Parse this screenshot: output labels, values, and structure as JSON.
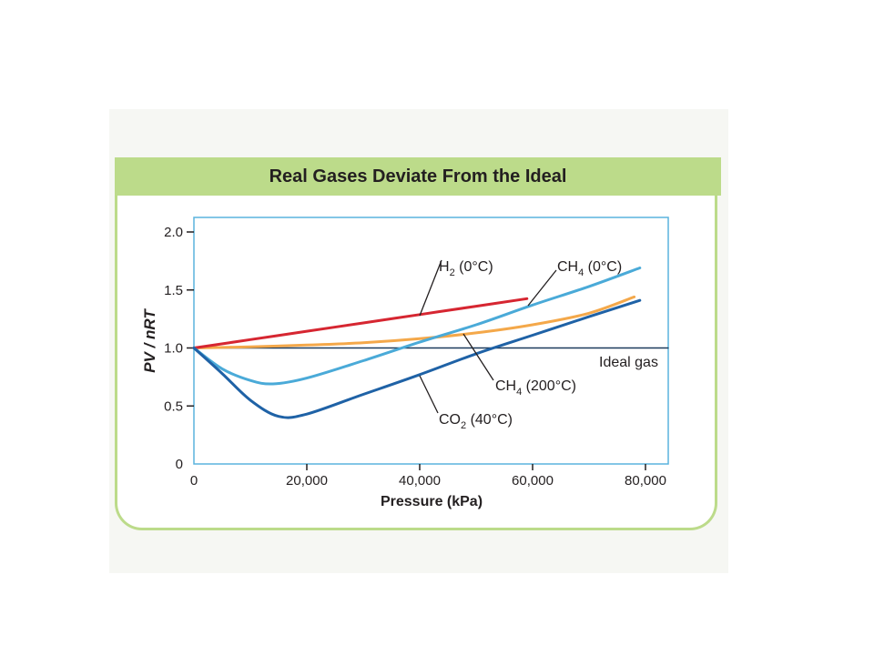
{
  "chart_data": {
    "type": "line",
    "title": "Real Gases Deviate From the Ideal",
    "xlabel": "Pressure (kPa)",
    "ylabel": "PV / nRT",
    "xlim": [
      0,
      84000
    ],
    "ylim": [
      0,
      2.1
    ],
    "x_ticks": [
      "0",
      "20,000",
      "40,000",
      "60,000",
      "80,000"
    ],
    "x_tick_values": [
      0,
      20000,
      40000,
      60000,
      80000
    ],
    "y_ticks": [
      "0",
      "0.5",
      "1.0",
      "1.5",
      "2.0"
    ],
    "y_tick_values": [
      0,
      0.5,
      1.0,
      1.5,
      2.0
    ],
    "grid": false,
    "series": [
      {
        "name": "H2 (0°C)",
        "label_main": "H",
        "label_sub": "2",
        "label_rest": " (0°C)",
        "color": "#d62631",
        "x": [
          0,
          10000,
          20000,
          30000,
          40000,
          50000,
          59000
        ],
        "y": [
          1.0,
          1.072,
          1.144,
          1.216,
          1.288,
          1.36,
          1.425
        ]
      },
      {
        "name": "CH4 (0°C)",
        "label_main": "CH",
        "label_sub": "4",
        "label_rest": " (0°C)",
        "color": "#4aaad8",
        "x": [
          0,
          5000,
          10000,
          14000,
          20000,
          30000,
          40000,
          50000,
          60000,
          70000,
          79000
        ],
        "y": [
          1.0,
          0.82,
          0.72,
          0.69,
          0.74,
          0.89,
          1.05,
          1.2,
          1.37,
          1.53,
          1.69
        ]
      },
      {
        "name": "CH4 (200°C)",
        "label_main": "CH",
        "label_sub": "4",
        "label_rest": " (200°C)",
        "color": "#f4a84a",
        "x": [
          0,
          10000,
          20000,
          30000,
          40000,
          50000,
          60000,
          70000,
          78000
        ],
        "y": [
          1.0,
          1.01,
          1.025,
          1.045,
          1.08,
          1.13,
          1.2,
          1.3,
          1.44
        ]
      },
      {
        "name": "CO2 (40°C)",
        "label_main": "CO",
        "label_sub": "2",
        "label_rest": " (40°C)",
        "color": "#1f62a6",
        "x": [
          0,
          5000,
          10000,
          15000,
          20000,
          30000,
          40000,
          50000,
          60000,
          70000,
          79000
        ],
        "y": [
          1.0,
          0.78,
          0.55,
          0.41,
          0.43,
          0.6,
          0.77,
          0.95,
          1.11,
          1.27,
          1.41
        ]
      },
      {
        "name": "Ideal gas",
        "color": "#1b3a5c",
        "x": [
          0,
          84000
        ],
        "y": [
          1.0,
          1.0
        ]
      }
    ]
  }
}
